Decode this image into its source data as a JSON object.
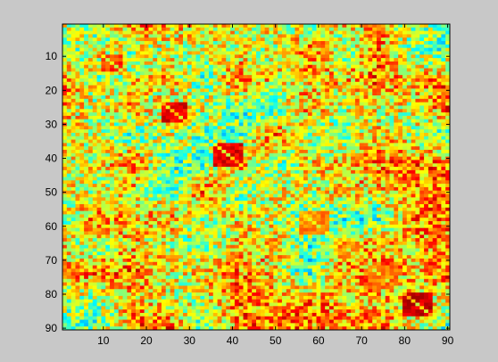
{
  "chart_data": {
    "type": "heatmap",
    "title": "",
    "xlabel": "",
    "ylabel": "",
    "x_range": [
      1,
      90
    ],
    "y_range": [
      1,
      90
    ],
    "y_direction": "top-to-bottom",
    "colormap": "jet",
    "x_ticks": [
      10,
      20,
      30,
      40,
      50,
      60,
      70,
      80,
      90
    ],
    "y_ticks": [
      10,
      20,
      30,
      40,
      50,
      60,
      70,
      80,
      90
    ],
    "x_tick_labels": [
      "10",
      "20",
      "30",
      "40",
      "50",
      "60",
      "70",
      "80",
      "90"
    ],
    "y_tick_labels": [
      "10",
      "20",
      "30",
      "40",
      "50",
      "60",
      "70",
      "80",
      "90"
    ],
    "grid": false,
    "legend": "none",
    "high_value_blocks": [
      {
        "rows": [
          24,
          29
        ],
        "cols": [
          24,
          29
        ],
        "level": 0.95
      },
      {
        "rows": [
          36,
          42
        ],
        "cols": [
          36,
          42
        ],
        "level": 0.95
      },
      {
        "rows": [
          10,
          14
        ],
        "cols": [
          10,
          14
        ],
        "level": 0.88
      },
      {
        "rows": [
          56,
          62
        ],
        "cols": [
          56,
          62
        ],
        "level": 0.8
      },
      {
        "rows": [
          65,
          68
        ],
        "cols": [
          65,
          68
        ],
        "level": 0.8
      },
      {
        "rows": [
          72,
          78
        ],
        "cols": [
          72,
          78
        ],
        "level": 0.82
      },
      {
        "rows": [
          80,
          86
        ],
        "cols": [
          80,
          86
        ],
        "level": 0.97
      }
    ],
    "background_seed": 7
  },
  "colors": {
    "figure_background": "#c8c8c8",
    "axes_background": "#ffffff",
    "axes_edge": "#000000"
  }
}
